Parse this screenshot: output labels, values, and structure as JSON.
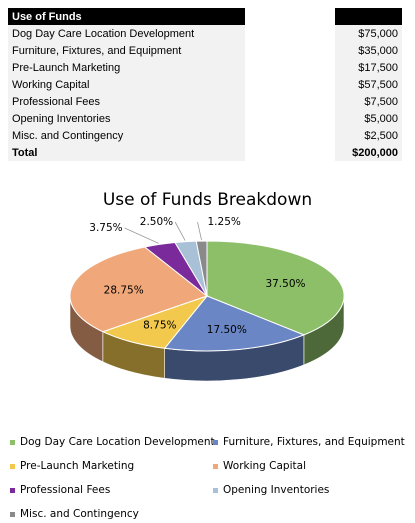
{
  "table": {
    "header": "Use of Funds",
    "rows": [
      {
        "label": "Dog Day Care Location Development",
        "amount": "$75,000"
      },
      {
        "label": "Furniture, Fixtures, and Equipment",
        "amount": "$35,000"
      },
      {
        "label": "Pre-Launch Marketing",
        "amount": "$17,500"
      },
      {
        "label": "Working Capital",
        "amount": "$57,500"
      },
      {
        "label": "Professional Fees",
        "amount": "$7,500"
      },
      {
        "label": "Opening Inventories",
        "amount": "$5,000"
      },
      {
        "label": "Misc. and Contingency",
        "amount": "$2,500"
      }
    ],
    "total_label": "Total",
    "total_amount": "$200,000"
  },
  "chart_data": {
    "type": "pie",
    "title": "Use of Funds Breakdown",
    "categories": [
      "Dog Day Care Location Development",
      "Furniture, Fixtures, and Equipment",
      "Pre-Launch Marketing",
      "Working Capital",
      "Professional Fees",
      "Opening Inventories",
      "Misc. and Contingency"
    ],
    "values": [
      37.5,
      17.5,
      8.75,
      28.75,
      3.75,
      2.5,
      1.25
    ],
    "labels": [
      "37.50%",
      "17.50%",
      "8.75%",
      "28.75%",
      "3.75%",
      "2.50%",
      "1.25%"
    ],
    "colors": [
      "#8cbf67",
      "#6a86c4",
      "#f2c94c",
      "#f0a87a",
      "#7a2a9a",
      "#a9c1d6",
      "#8a8a8a"
    ],
    "legend_position": "bottom"
  }
}
